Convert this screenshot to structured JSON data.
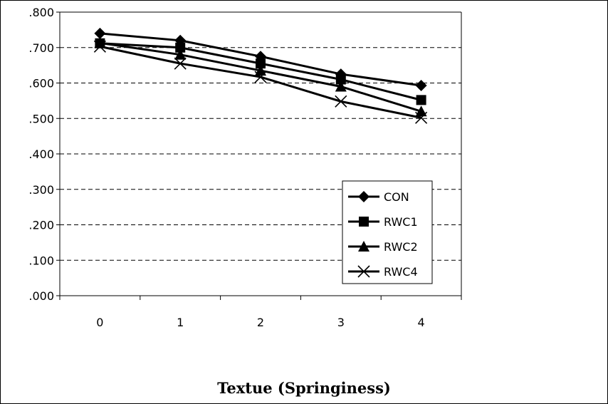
{
  "chart_data": {
    "type": "line",
    "title": "Textue (Springiness)",
    "xlabel": "",
    "ylabel": "",
    "categories": [
      "0",
      "1",
      "2",
      "3",
      "4"
    ],
    "y_tick_labels": [
      ".000",
      ".100",
      ".200",
      ".300",
      ".400",
      ".500",
      ".600",
      ".700",
      ".800"
    ],
    "ylim": [
      0,
      0.8
    ],
    "grid": "horizontal-dashed",
    "legend_position": "bottom-right",
    "series": [
      {
        "name": "CON",
        "marker": "diamond",
        "values": [
          0.74,
          0.72,
          0.675,
          0.625,
          0.593
        ]
      },
      {
        "name": "RWC1",
        "marker": "square",
        "values": [
          0.712,
          0.7,
          0.655,
          0.61,
          0.552
        ]
      },
      {
        "name": "RWC2",
        "marker": "triangle",
        "values": [
          0.713,
          0.68,
          0.635,
          0.59,
          0.52
        ]
      },
      {
        "name": "RWC4",
        "marker": "x",
        "values": [
          0.703,
          0.655,
          0.617,
          0.548,
          0.502
        ]
      }
    ],
    "line_color": "#000000"
  }
}
